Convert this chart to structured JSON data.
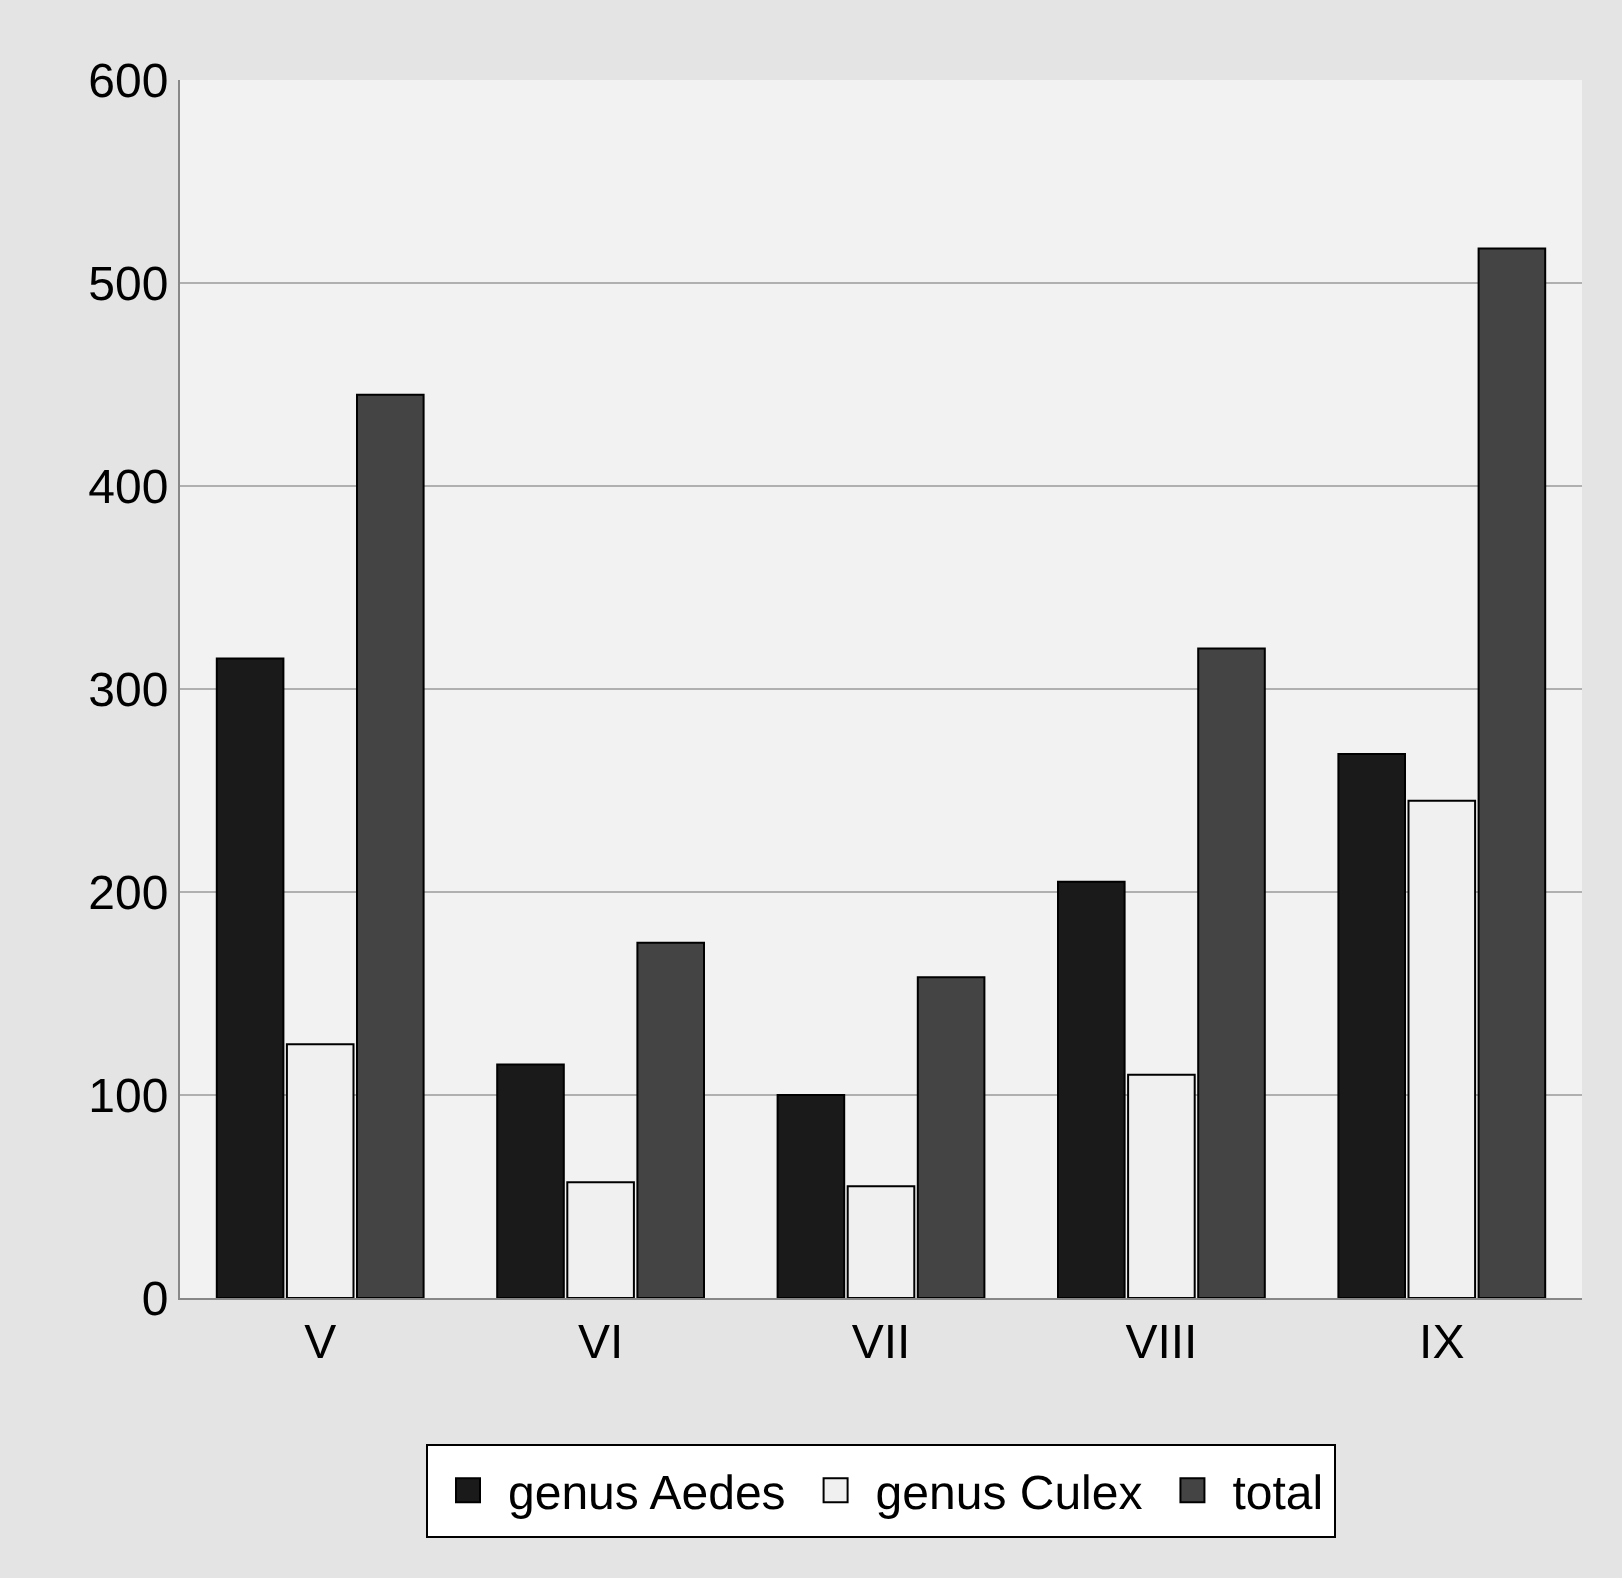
{
  "chart_data": {
    "type": "bar",
    "categories": [
      "V",
      "VI",
      "VII",
      "VIII",
      "IX"
    ],
    "series": [
      {
        "name": "genus Aedes",
        "color": "#1a1a1a",
        "values": [
          315,
          115,
          100,
          205,
          268
        ]
      },
      {
        "name": "genus Culex",
        "color": "#f0f0f0",
        "values": [
          125,
          57,
          55,
          110,
          245
        ]
      },
      {
        "name": "total",
        "color": "#444444",
        "values": [
          445,
          175,
          158,
          320,
          517
        ]
      }
    ],
    "ylim": [
      0,
      600
    ],
    "yticks": [
      0,
      100,
      200,
      300,
      400,
      500,
      600
    ],
    "grid": "y",
    "legend": "bottom"
  }
}
